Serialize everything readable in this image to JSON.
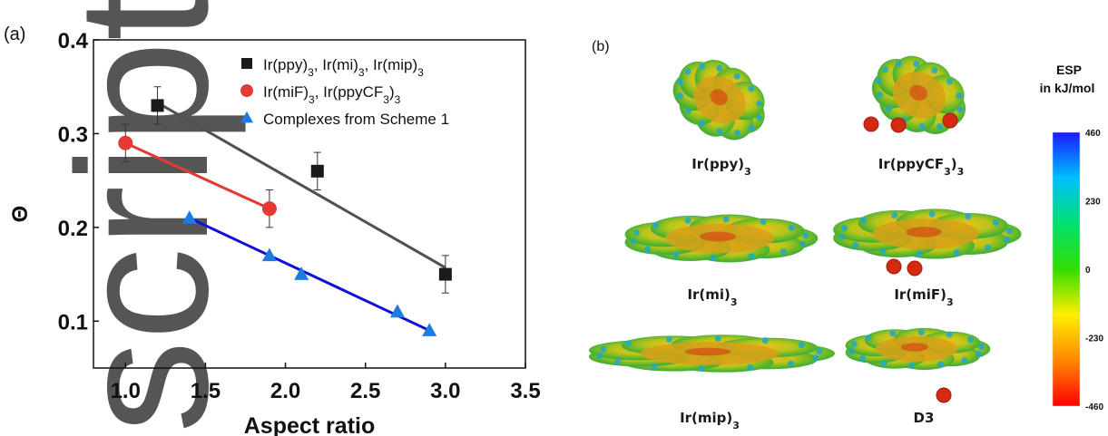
{
  "figure": {
    "panel_a_label": "(a)",
    "panel_b_label": "(b)",
    "watermark_text": "script",
    "watermark_color": "#555555"
  },
  "chart_data": {
    "type": "scatter",
    "xlabel": "Aspect ratio",
    "ylabel": "Θ",
    "xlim": [
      0.8,
      3.5
    ],
    "ylim": [
      0.05,
      0.4
    ],
    "x_ticks": [
      {
        "value": 1.0,
        "label": "1.0"
      },
      {
        "value": 1.5,
        "label": "1.5"
      },
      {
        "value": 2.0,
        "label": "2.0"
      },
      {
        "value": 2.5,
        "label": "2.5"
      },
      {
        "value": 3.0,
        "label": "3.0"
      },
      {
        "value": 3.5,
        "label": "3.5"
      }
    ],
    "y_ticks": [
      {
        "value": 0.1,
        "label": "0.1"
      },
      {
        "value": 0.2,
        "label": "0.2"
      },
      {
        "value": 0.3,
        "label": "0.3"
      },
      {
        "value": 0.4,
        "label": "0.4"
      }
    ],
    "grid": false,
    "legend_position": "top-right",
    "series": [
      {
        "name": "Ir(ppy)3, Ir(mi)3, Ir(mip)3",
        "legend_parts": [
          [
            "Ir(ppy)",
            ""
          ],
          [
            "3",
            "sub"
          ],
          [
            ", Ir(mi)",
            ""
          ],
          [
            "3",
            "sub"
          ],
          [
            ", Ir(mip)",
            ""
          ],
          [
            "3",
            "sub"
          ]
        ],
        "marker": "square",
        "color": "#1a1a1a",
        "fit_color": "#505050",
        "x": [
          1.2,
          2.2,
          3.0
        ],
        "y": [
          0.33,
          0.26,
          0.15
        ],
        "err": [
          0.02,
          0.02,
          0.02
        ],
        "fit": [
          [
            1.2,
            0.333
          ],
          [
            3.0,
            0.157
          ]
        ]
      },
      {
        "name": "Ir(miF)3, Ir(ppyCF3)3",
        "legend_parts": [
          [
            "Ir(miF)",
            ""
          ],
          [
            "3",
            "sub"
          ],
          [
            ", Ir(ppyCF",
            ""
          ],
          [
            "3",
            "sub"
          ],
          [
            ")",
            ""
          ],
          [
            "3",
            "sub"
          ]
        ],
        "marker": "circle",
        "color": "#e53935",
        "fit_color": "#e53935",
        "x": [
          1.0,
          1.9
        ],
        "y": [
          0.29,
          0.22
        ],
        "err": [
          0.02,
          0.02
        ],
        "fit": [
          [
            1.0,
            0.29
          ],
          [
            1.9,
            0.22
          ]
        ]
      },
      {
        "name": "Complexes from Scheme 1",
        "legend_parts": [
          [
            "Complexes from Scheme 1",
            ""
          ]
        ],
        "marker": "triangle",
        "color": "#1e7be0",
        "fit_color": "#1010d8",
        "x": [
          1.4,
          1.9,
          2.1,
          2.7,
          2.9
        ],
        "y": [
          0.21,
          0.17,
          0.15,
          0.11,
          0.09
        ],
        "err": [],
        "fit": [
          [
            1.4,
            0.21
          ],
          [
            2.9,
            0.09
          ]
        ]
      }
    ]
  },
  "esp": {
    "title_line1": "ESP",
    "title_line2": "in kJ/mol",
    "ticks": [
      "460",
      "230",
      "0",
      "-230",
      "-460"
    ],
    "gradient_colors": [
      "#1a1aff",
      "#00bfff",
      "#00e070",
      "#33dd00",
      "#ffee00",
      "#ff8800",
      "#ff0000"
    ]
  },
  "molecules": [
    {
      "id": "ppy",
      "label_parts": [
        [
          "Ir(ppy)",
          ""
        ],
        [
          "3",
          "sub"
        ]
      ]
    },
    {
      "id": "ppyCF3",
      "label_parts": [
        [
          "Ir(ppyCF",
          ""
        ],
        [
          "3",
          "sub"
        ],
        [
          ")",
          ""
        ],
        [
          "3",
          "sub"
        ]
      ]
    },
    {
      "id": "mi",
      "label_parts": [
        [
          "Ir(mi)",
          ""
        ],
        [
          "3",
          "sub"
        ]
      ]
    },
    {
      "id": "miF",
      "label_parts": [
        [
          "Ir(miF)",
          ""
        ],
        [
          "3",
          "sub"
        ]
      ]
    },
    {
      "id": "mip",
      "label_parts": [
        [
          "Ir(mip)",
          ""
        ],
        [
          "3",
          "sub"
        ]
      ]
    },
    {
      "id": "D3",
      "label_parts": [
        [
          "D3",
          ""
        ]
      ]
    }
  ]
}
